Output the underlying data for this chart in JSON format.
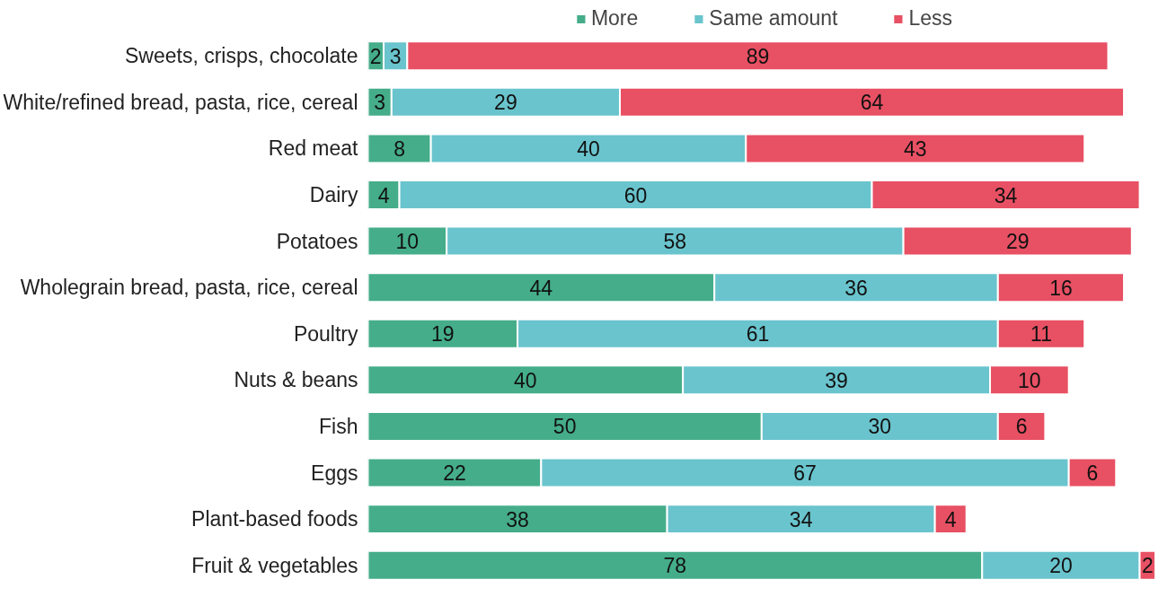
{
  "chart_data": {
    "type": "bar",
    "orientation": "horizontal",
    "stacked": true,
    "data_labels": true,
    "legend": "top",
    "grid": false,
    "categories": [
      "Sweets, crisps, chocolate",
      "White/refined bread, pasta, rice, cereal",
      "Red meat",
      "Dairy",
      "Potatoes",
      "Wholegrain bread, pasta, rice, cereal",
      "Poultry",
      "Nuts & beans",
      "Fish",
      "Eggs",
      "Plant-based foods",
      "Fruit & vegetables"
    ],
    "series": [
      {
        "name": "More",
        "color": "#45ad8a",
        "values": [
          2,
          3,
          8,
          4,
          10,
          44,
          19,
          40,
          50,
          22,
          38,
          78
        ]
      },
      {
        "name": "Same amount",
        "color": "#6ac4cd",
        "values": [
          3,
          29,
          40,
          60,
          58,
          36,
          61,
          39,
          30,
          67,
          34,
          20
        ]
      },
      {
        "name": "Less",
        "color": "#e85063",
        "values": [
          89,
          64,
          43,
          34,
          29,
          16,
          11,
          10,
          6,
          6,
          4,
          2
        ]
      }
    ]
  }
}
